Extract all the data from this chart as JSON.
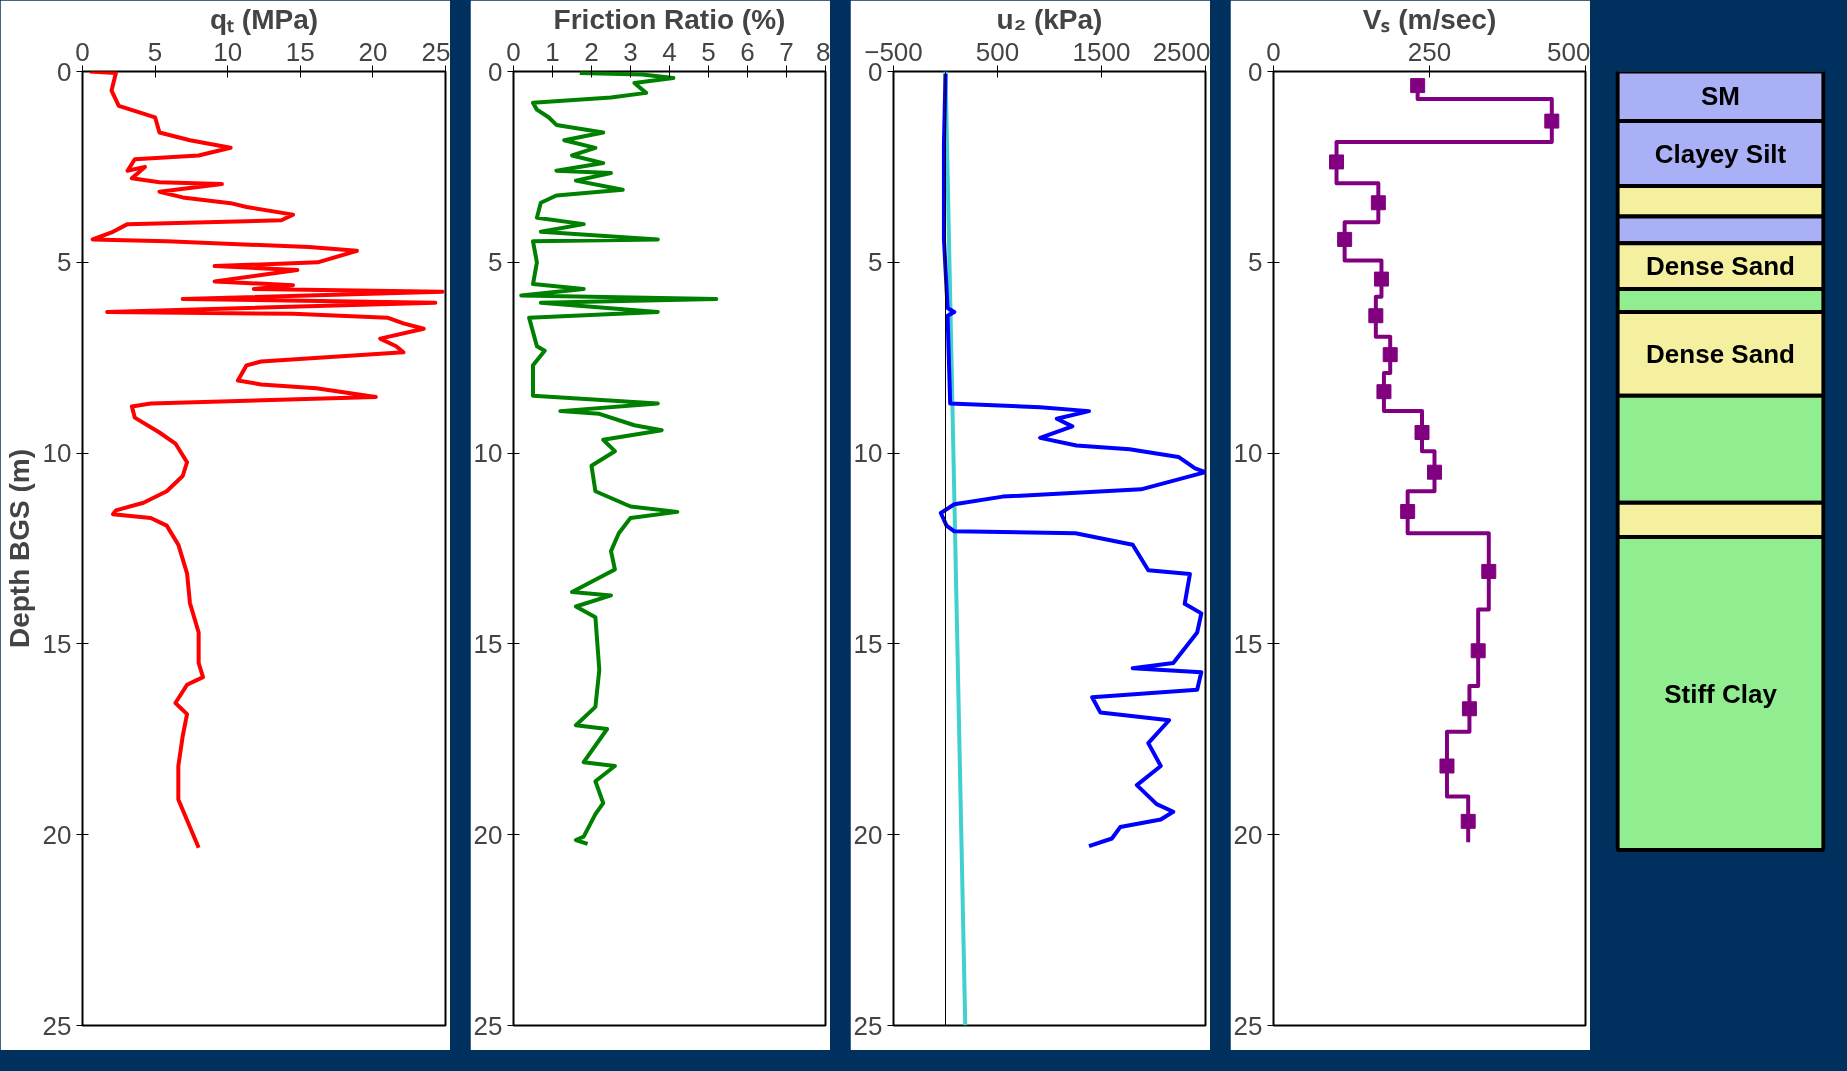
{
  "chart_data": [
    {
      "type": "line",
      "xlabel": "qₜ (MPa)",
      "ylabel": "Depth BGS (m)",
      "xlim": [
        0,
        25
      ],
      "xticks": [
        0,
        5,
        10,
        15,
        20,
        25
      ],
      "ylim": [
        25,
        0
      ],
      "yticks": [
        0,
        5,
        10,
        15,
        20,
        25
      ],
      "series": [
        {
          "color": "#ff0000",
          "x": [
            0.5,
            2.3,
            2.0,
            2.5,
            5.0,
            5.3,
            7.4,
            10.2,
            8.0,
            3.6,
            3.1,
            4.3,
            3.4,
            5.3,
            9.6,
            5.3,
            6.9,
            10.2,
            11.3,
            14.5,
            13.7,
            3.1,
            2.1,
            0.7,
            5.8,
            15.6,
            18.9,
            16.2,
            9.1,
            14.8,
            9.1,
            14.5,
            11.8,
            24.8,
            6.9,
            24.3,
            1.7,
            14.5,
            21.0,
            22.1,
            23.5,
            20.5,
            21.6,
            22.1,
            12.3,
            11.3,
            10.7,
            12.3,
            16.1,
            20.2,
            4.7,
            3.4,
            3.6,
            5.3,
            6.4,
            7.2,
            6.9,
            5.8,
            4.2,
            2.3,
            2.1,
            4.7,
            5.8,
            6.6,
            7.2,
            7.4,
            8.0,
            8.0,
            8.3,
            7.2,
            6.4,
            7.2,
            6.9,
            6.6,
            6.6,
            8.0
          ],
          "values": [
            0,
            0.04,
            0.5,
            0.9,
            1.2,
            1.6,
            1.8,
            2.0,
            2.2,
            2.3,
            2.6,
            2.5,
            2.8,
            2.9,
            2.95,
            3.15,
            3.3,
            3.45,
            3.55,
            3.75,
            3.9,
            4.0,
            4.2,
            4.4,
            4.45,
            4.6,
            4.7,
            5.0,
            5.1,
            5.2,
            5.5,
            5.6,
            5.7,
            5.77,
            5.96,
            6.06,
            6.3,
            6.35,
            6.45,
            6.6,
            6.74,
            7.0,
            7.2,
            7.36,
            7.6,
            7.7,
            8.1,
            8.2,
            8.3,
            8.53,
            8.7,
            8.78,
            9.07,
            9.46,
            9.75,
            10.24,
            10.6,
            11.0,
            11.3,
            11.5,
            11.6,
            11.7,
            11.9,
            12.4,
            13.15,
            13.93,
            14.7,
            15.5,
            15.87,
            16.07,
            16.55,
            16.84,
            17.42,
            18.2,
            19.08,
            20.34
          ]
        }
      ]
    },
    {
      "type": "line",
      "xlabel": "Friction Ratio (%)",
      "xlim": [
        0,
        8
      ],
      "xticks": [
        0,
        1,
        2,
        3,
        4,
        5,
        6,
        7,
        8
      ],
      "ylim": [
        25,
        0
      ],
      "yticks": [
        0,
        5,
        10,
        15,
        20,
        25
      ],
      "series": [
        {
          "color": "#008000",
          "x": [
            1.7,
            3.3,
            4.1,
            3.1,
            3.4,
            2.5,
            0.5,
            0.6,
            0.9,
            1.1,
            2.3,
            1.3,
            2.1,
            1.5,
            2.3,
            1.1,
            2.5,
            1.6,
            2.8,
            1.1,
            0.7,
            0.6,
            1.8,
            0.7,
            3.7,
            0.5,
            0.6,
            0.5,
            1.8,
            0.2,
            5.2,
            0.7,
            3.7,
            0.4,
            0.6,
            0.8,
            0.5,
            0.5,
            3.7,
            1.2,
            2.2,
            3.1,
            3.8,
            2.3,
            2.6,
            2.0,
            2.1,
            3.0,
            4.2,
            3.0,
            2.7,
            2.5,
            2.6,
            1.5,
            2.5,
            1.6,
            2.1,
            2.2,
            2.1,
            1.6,
            2.4,
            1.8,
            2.6,
            2.1,
            2.3,
            2.1,
            1.8,
            1.6,
            1.9
          ],
          "values": [
            0.04,
            0.08,
            0.17,
            0.3,
            0.56,
            0.68,
            0.82,
            1.0,
            1.2,
            1.4,
            1.6,
            1.8,
            2.0,
            2.2,
            2.4,
            2.6,
            2.66,
            2.86,
            3.1,
            3.25,
            3.44,
            3.83,
            4.0,
            4.2,
            4.4,
            4.45,
            5.0,
            5.57,
            5.7,
            5.87,
            5.96,
            6.06,
            6.3,
            6.45,
            7.2,
            7.32,
            7.7,
            8.5,
            8.7,
            8.9,
            8.97,
            9.27,
            9.4,
            9.65,
            9.95,
            10.33,
            11.0,
            11.4,
            11.54,
            11.7,
            12.1,
            12.57,
            13.05,
            13.64,
            13.73,
            14.02,
            14.3,
            15.68,
            16.65,
            17.13,
            17.23,
            18.1,
            18.2,
            18.6,
            19.17,
            19.46,
            20.05,
            20.14,
            20.24
          ]
        }
      ]
    },
    {
      "type": "line",
      "xlabel": "u₂ (kPa)",
      "xlim": [
        -500,
        2500
      ],
      "xticks": [
        -500,
        500,
        1500,
        2500
      ],
      "ylim": [
        25,
        0
      ],
      "yticks": [
        0,
        5,
        10,
        15,
        20,
        25
      ],
      "ref_lines": [
        {
          "axis": "x",
          "value": 0,
          "color": "#000000"
        }
      ],
      "series": [
        {
          "color": "#40d0d0",
          "x": [
            0,
            190
          ],
          "values": [
            0,
            25
          ]
        },
        {
          "color": "#0000ff",
          "x": [
            0,
            -15,
            -15,
            20,
            85,
            20,
            45,
            910,
            1380,
            1070,
            1220,
            910,
            1260,
            1770,
            2240,
            2400,
            2500,
            1880,
            550,
            85,
            -45,
            10,
            85,
            1250,
            1800,
            1950,
            2350,
            2300,
            2460,
            2420,
            2190,
            1800,
            2460,
            2420,
            1410,
            1490,
            2150,
            1950,
            2070,
            1840,
            2030,
            2190,
            2070,
            1680,
            1600,
            1380
          ],
          "values": [
            0.06,
            1.9,
            4.4,
            6.2,
            6.3,
            6.4,
            8.7,
            8.8,
            8.9,
            9.1,
            9.3,
            9.6,
            9.8,
            9.9,
            10.1,
            10.4,
            10.5,
            10.95,
            11.14,
            11.34,
            11.57,
            11.9,
            12.05,
            12.1,
            12.4,
            13.07,
            13.17,
            13.95,
            14.2,
            14.7,
            15.5,
            15.64,
            15.74,
            16.2,
            16.4,
            16.8,
            17.0,
            17.6,
            18.2,
            18.7,
            19.2,
            19.4,
            19.6,
            19.8,
            20.1,
            20.3
          ]
        }
      ]
    },
    {
      "type": "line",
      "xlabel": "Vₛ (m/sec)",
      "xlim": [
        0,
        500
      ],
      "xticks": [
        0,
        250,
        500
      ],
      "ylim": [
        25,
        0
      ],
      "yticks": [
        0,
        5,
        10,
        15,
        20,
        25
      ],
      "series": [
        {
          "color": "#800080",
          "x": [
            231,
            231,
            446,
            446,
            101,
            101,
            168,
            168,
            114,
            114,
            173,
            173,
            164,
            164,
            187,
            187,
            177,
            177,
            238,
            238,
            258,
            258,
            215,
            215,
            345,
            345,
            328,
            328,
            314,
            314,
            278,
            278,
            312,
            312
          ],
          "values": [
            0.2,
            0.72,
            0.72,
            1.85,
            1.85,
            2.93,
            2.93,
            3.95,
            3.95,
            4.95,
            4.95,
            5.9,
            5.9,
            6.95,
            6.95,
            7.9,
            7.9,
            8.9,
            8.9,
            9.95,
            9.95,
            11.0,
            11.0,
            12.1,
            12.1,
            14.1,
            14.1,
            16.1,
            16.1,
            17.3,
            17.3,
            19.0,
            19.0,
            20.2
          ]
        },
        {
          "type": "scatter",
          "marker": "square",
          "color": "#800080",
          "x": [
            231,
            446,
            101,
            168,
            114,
            173,
            164,
            187,
            177,
            238,
            258,
            215,
            345,
            328,
            314,
            278,
            312
          ],
          "values": [
            0.37,
            1.3,
            2.37,
            3.44,
            4.4,
            5.44,
            6.4,
            7.42,
            8.39,
            9.46,
            10.5,
            11.53,
            13.1,
            15.18,
            16.7,
            18.2,
            19.65
          ]
        }
      ]
    },
    {
      "type": "bar",
      "stacked": true,
      "categories": [
        null
      ],
      "ylim": [
        25,
        0
      ],
      "tick_labels": false,
      "series": [
        {
          "name": "SM",
          "color": "#aab0f5",
          "values": [
            1.3
          ]
        },
        {
          "name": "Clayey Silt",
          "color": "#aab0f5",
          "values": [
            1.7
          ]
        },
        {
          "color": "#f5f0a0",
          "values": [
            0.8
          ]
        },
        {
          "color": "#aab0f5",
          "values": [
            0.7
          ]
        },
        {
          "name": "Dense Sand",
          "color": "#f5f0a0",
          "values": [
            1.2
          ]
        },
        {
          "color": "#90ee90",
          "values": [
            0.6
          ]
        },
        {
          "name": "Dense Sand",
          "color": "#f5f0a0",
          "values": [
            2.2
          ]
        },
        {
          "color": "#90ee90",
          "values": [
            2.8
          ]
        },
        {
          "color": "#f5f0a0",
          "values": [
            0.9
          ]
        },
        {
          "name": "Stiff Clay",
          "color": "#90ee90",
          "values": [
            8.2
          ]
        }
      ]
    }
  ]
}
